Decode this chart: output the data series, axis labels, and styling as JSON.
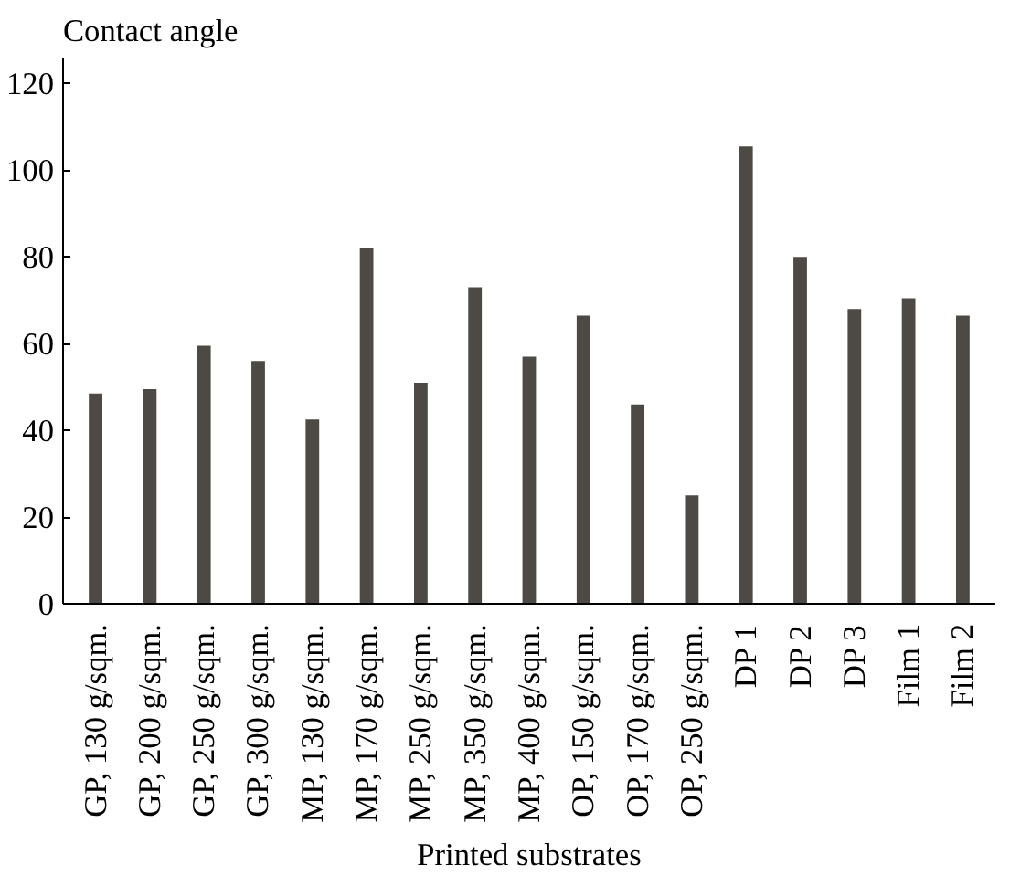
{
  "chart_data": {
    "type": "bar",
    "xlabel": "Printed substrates",
    "ylabel": "Contact angle",
    "categories": [
      "GP, 130 g/sqm.",
      "GP, 200 g/sqm.",
      "GP, 250 g/sqm.",
      "GP, 300 g/sqm.",
      "MP, 130 g/sqm.",
      "MP, 170 g/sqm.",
      "MP, 250 g/sqm.",
      "MP, 350 g/sqm.",
      "MP, 400 g/sqm.",
      "OP, 150 g/sqm.",
      "OP, 170 g/sqm.",
      "OP, 250 g/sqm.",
      "DP 1",
      "DP 2",
      "DP 3",
      "Film 1",
      "Film 2"
    ],
    "values": [
      48.5,
      49.5,
      59.5,
      56,
      42.5,
      82,
      51,
      73,
      57,
      66.5,
      46,
      25,
      105.5,
      80,
      68,
      70.5,
      66.5
    ],
    "color": "#4d4a45",
    "ylim": [
      0,
      126
    ],
    "yticks": [
      0,
      20,
      40,
      60,
      80,
      100,
      120
    ],
    "grid": false
  }
}
